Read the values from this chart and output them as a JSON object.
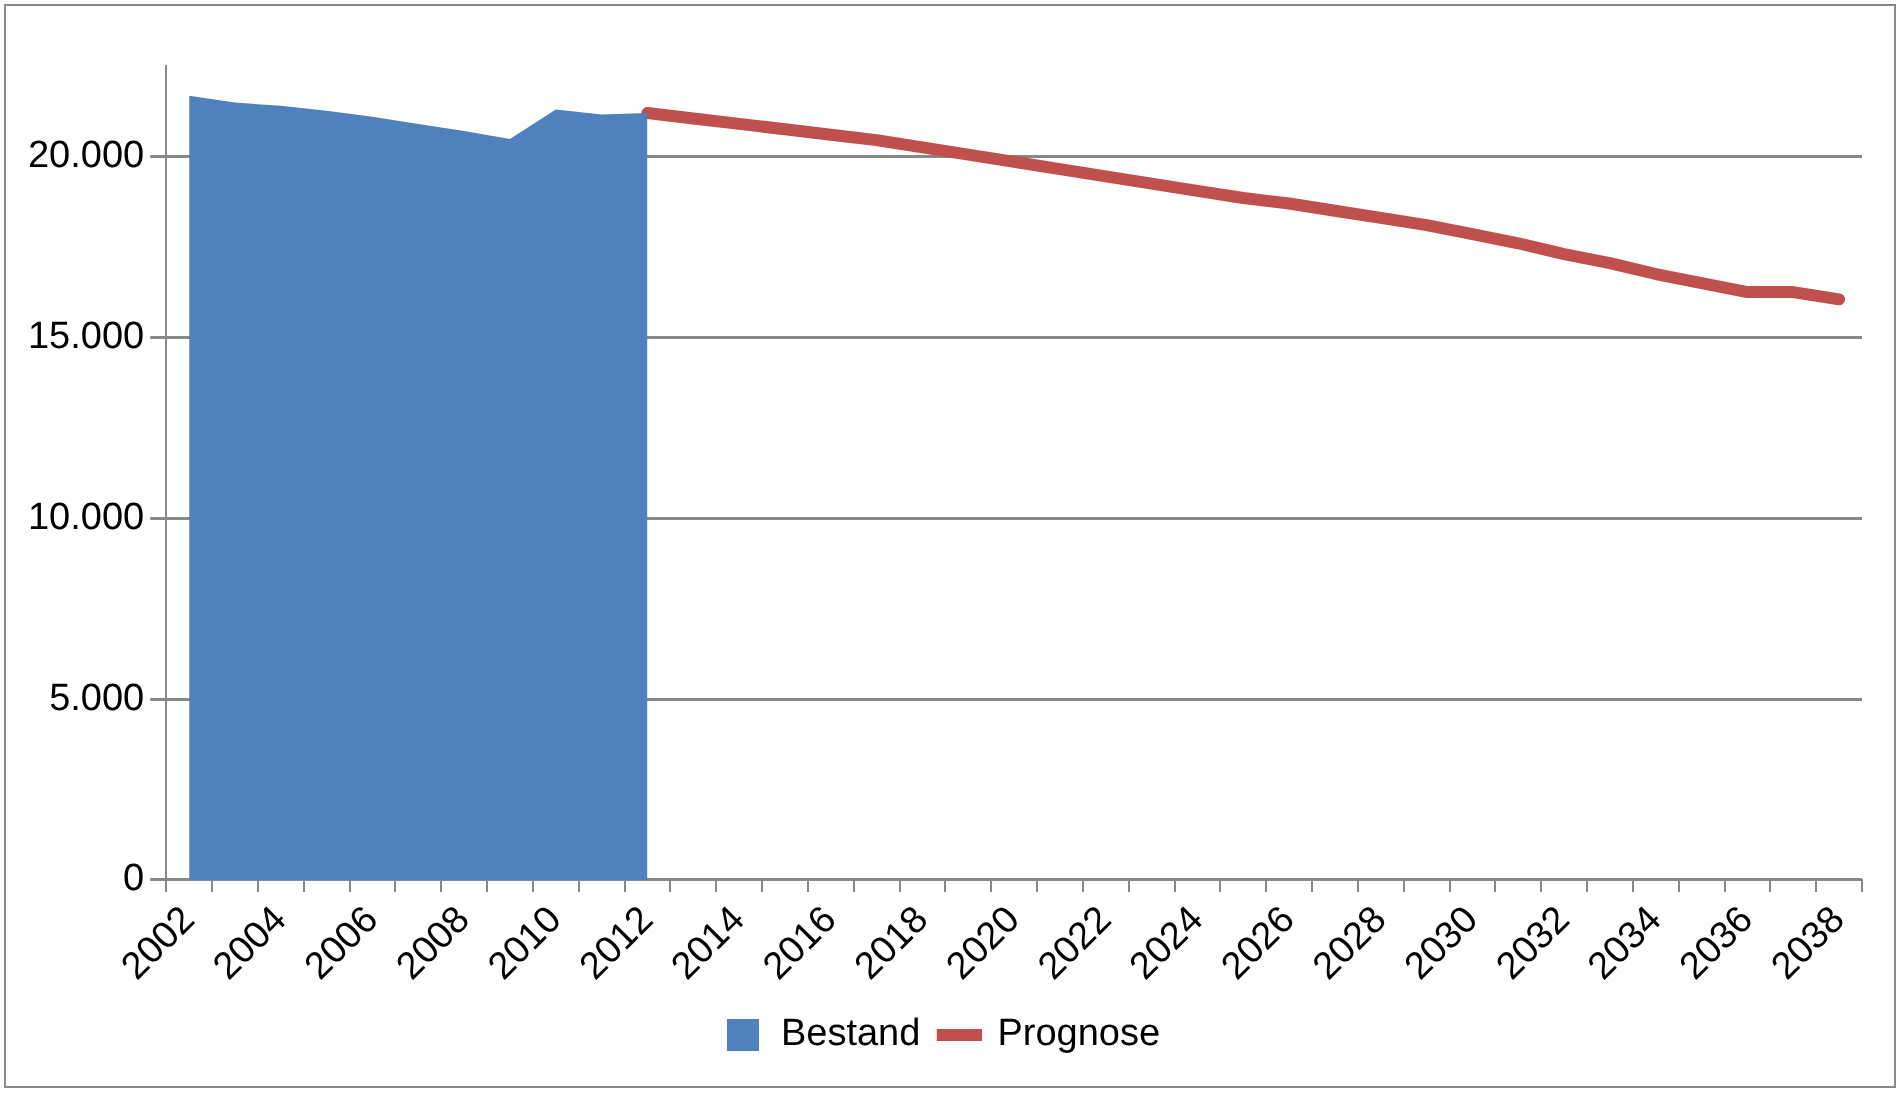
{
  "chart_data": {
    "type": "area",
    "categories": [
      "2002",
      null,
      "2004",
      null,
      "2006",
      null,
      "2008",
      null,
      "2010",
      null,
      "2012",
      null,
      "2014",
      null,
      "2016",
      null,
      "2018",
      null,
      "2020",
      null,
      "2022",
      null,
      "2024",
      null,
      "2026",
      null,
      "2028",
      null,
      "2030",
      null,
      "2032",
      null,
      "2034",
      null,
      "2036",
      null,
      "2038"
    ],
    "series": [
      {
        "name": "Bestand",
        "color": "#4f81bd",
        "values": [
          21680,
          21490,
          21400,
          21260,
          21100,
          20900,
          20700,
          20480,
          21300,
          21160,
          21200,
          null,
          null,
          null,
          null,
          null,
          null,
          null,
          null,
          null,
          null,
          null,
          null,
          null,
          null,
          null,
          null,
          null,
          null,
          null,
          null,
          null,
          null,
          null,
          null,
          null,
          null
        ]
      },
      {
        "name": "Prognose",
        "type": "line",
        "color": "#c0504d",
        "values": [
          null,
          null,
          null,
          null,
          null,
          null,
          null,
          null,
          null,
          null,
          21200,
          21050,
          20900,
          20750,
          20600,
          20450,
          20250,
          20050,
          19850,
          19650,
          19450,
          19250,
          19050,
          18850,
          18700,
          18500,
          18300,
          18100,
          17850,
          17600,
          17300,
          17050,
          16750,
          16500,
          16250,
          16250,
          16050
        ]
      }
    ],
    "ylim": [
      0,
      22500
    ],
    "yticks": [
      {
        "value": 0,
        "label": "0"
      },
      {
        "value": 5000,
        "label": "5.000"
      },
      {
        "value": 10000,
        "label": "10.000"
      },
      {
        "value": 15000,
        "label": "15.000"
      },
      {
        "value": 20000,
        "label": "20.000"
      }
    ],
    "grid": "y",
    "legend": "bottom",
    "marker": "none"
  }
}
